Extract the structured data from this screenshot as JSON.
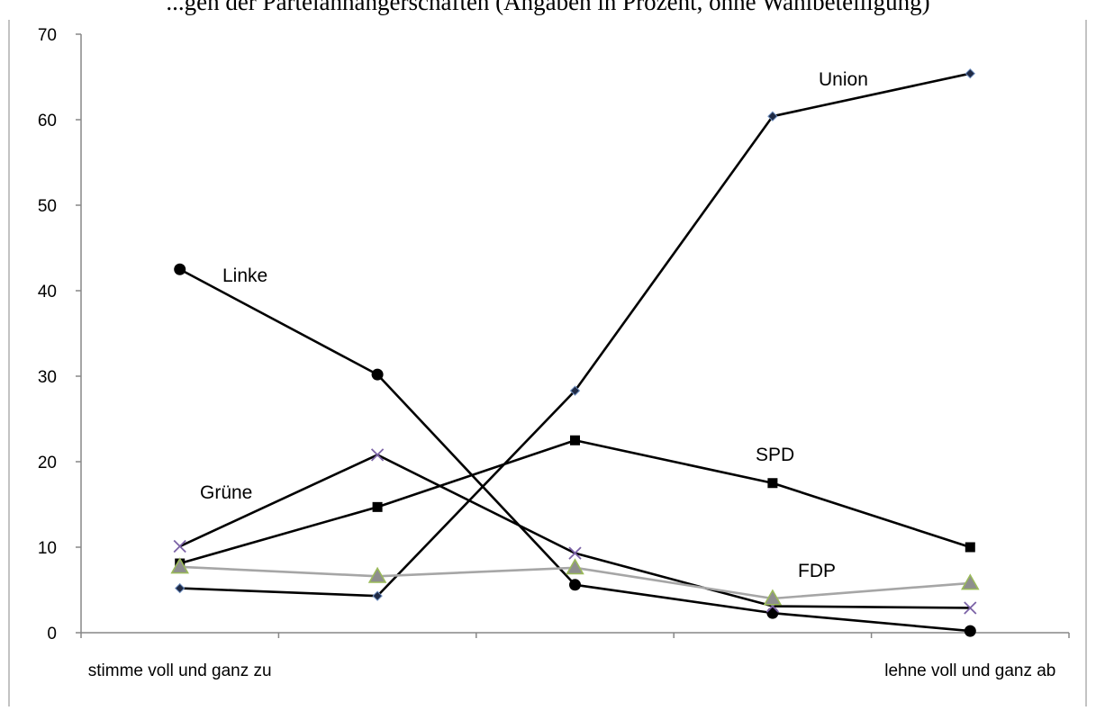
{
  "caption": "...gen der Parteianhängerschaften (Angaben in Prozent, ohne Wahlbeteiligung)",
  "chart_data": {
    "type": "line",
    "title": "",
    "xlabel": "",
    "ylabel": "",
    "ylim": [
      0,
      70
    ],
    "yticks": [
      0,
      10,
      20,
      30,
      40,
      50,
      60,
      70
    ],
    "categories": [
      "stimme voll und ganz zu",
      "",
      "",
      "",
      "lehne voll und ganz ab"
    ],
    "grid": false,
    "legend": "none",
    "series": [
      {
        "name": "Linke",
        "label": "Linke",
        "values": [
          42.5,
          30.2,
          5.6,
          2.3,
          0.2
        ],
        "color": "#000000",
        "marker": "circle"
      },
      {
        "name": "Union",
        "label": "Union",
        "values": [
          5.2,
          4.3,
          28.3,
          60.4,
          65.4
        ],
        "color": "#000000",
        "marker": "diamond"
      },
      {
        "name": "SPD",
        "label": "SPD",
        "values": [
          8.1,
          14.7,
          22.5,
          17.5,
          10.0
        ],
        "color": "#000000",
        "marker": "square"
      },
      {
        "name": "Grüne",
        "label": "Grüne",
        "values": [
          10.1,
          20.8,
          9.3,
          3.1,
          2.9
        ],
        "color": "#000000",
        "marker": "x"
      },
      {
        "name": "FDP",
        "label": "FDP",
        "values": [
          7.7,
          6.6,
          7.6,
          4.0,
          5.8
        ],
        "color": "#a6a6a6",
        "marker": "triangle"
      }
    ]
  }
}
